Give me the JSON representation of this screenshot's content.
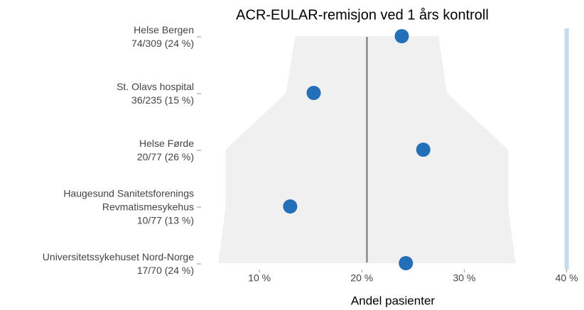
{
  "chart_data": {
    "type": "dot",
    "title": "ACR-EULAR-remisjon ved 1 års kontroll",
    "x_label": "Andel pasienter",
    "categories": [
      "Helse Bergen",
      "St. Olavs hospital",
      "Helse Førde",
      "Haugesund Sanitetsforenings Revmatismesykehus",
      "Universitetssykehuset Nord-Norge"
    ],
    "value_labels": [
      "74/309 (24 %)",
      "36/235 (15 %)",
      "20/77 (26 %)",
      "10/77 (13 %)",
      "17/70 (24 %)"
    ],
    "values": [
      23.9,
      15.3,
      26.0,
      13.0,
      24.3
    ],
    "color": "#2470b8",
    "funnel_lower": [
      13.5,
      12.6,
      6.7,
      6.7,
      6.0
    ],
    "funnel_upper": [
      27.5,
      28.3,
      34.3,
      34.3,
      35.0
    ],
    "funnel_color": "#f0f0f0",
    "reference_line": 20.5,
    "reference_color": "#888888",
    "target_line": 40,
    "target_color": "#c5dcef",
    "xlim": [
      4.3,
      41
    ],
    "xticks": [
      {
        "value": 10,
        "label": "10 %"
      },
      {
        "value": 20,
        "label": "20 %"
      },
      {
        "value": 30,
        "label": "30 %"
      },
      {
        "value": 40,
        "label": "40 %"
      }
    ]
  }
}
